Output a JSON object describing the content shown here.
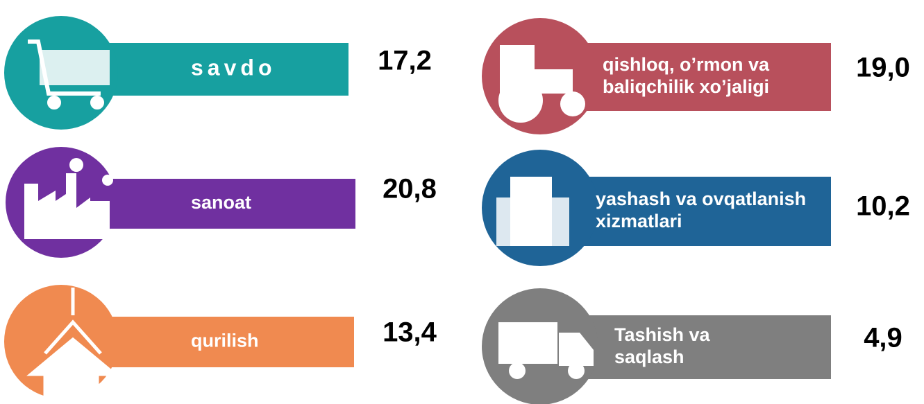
{
  "items": [
    {
      "label": [
        "savdo"
      ],
      "value": "17,2",
      "color": "#17a0a0"
    },
    {
      "label": [
        "sanoat"
      ],
      "value": "20,8",
      "color": "#7030a0"
    },
    {
      "label": [
        "qurilish"
      ],
      "value": "13,4",
      "color": "#f08a50"
    },
    {
      "label": [
        "qishloq, o’rmon va",
        "baliqchilik xo’jaligi"
      ],
      "value": "19,0",
      "color": "#b8505c"
    },
    {
      "label": [
        "yashash va ovqatlanish",
        "xizmatlari"
      ],
      "value": "10,2",
      "color": "#1f6497"
    },
    {
      "label": [
        "Tashish va",
        "saqlash"
      ],
      "value": "4,9",
      "color": "#7f7f7f"
    }
  ]
}
